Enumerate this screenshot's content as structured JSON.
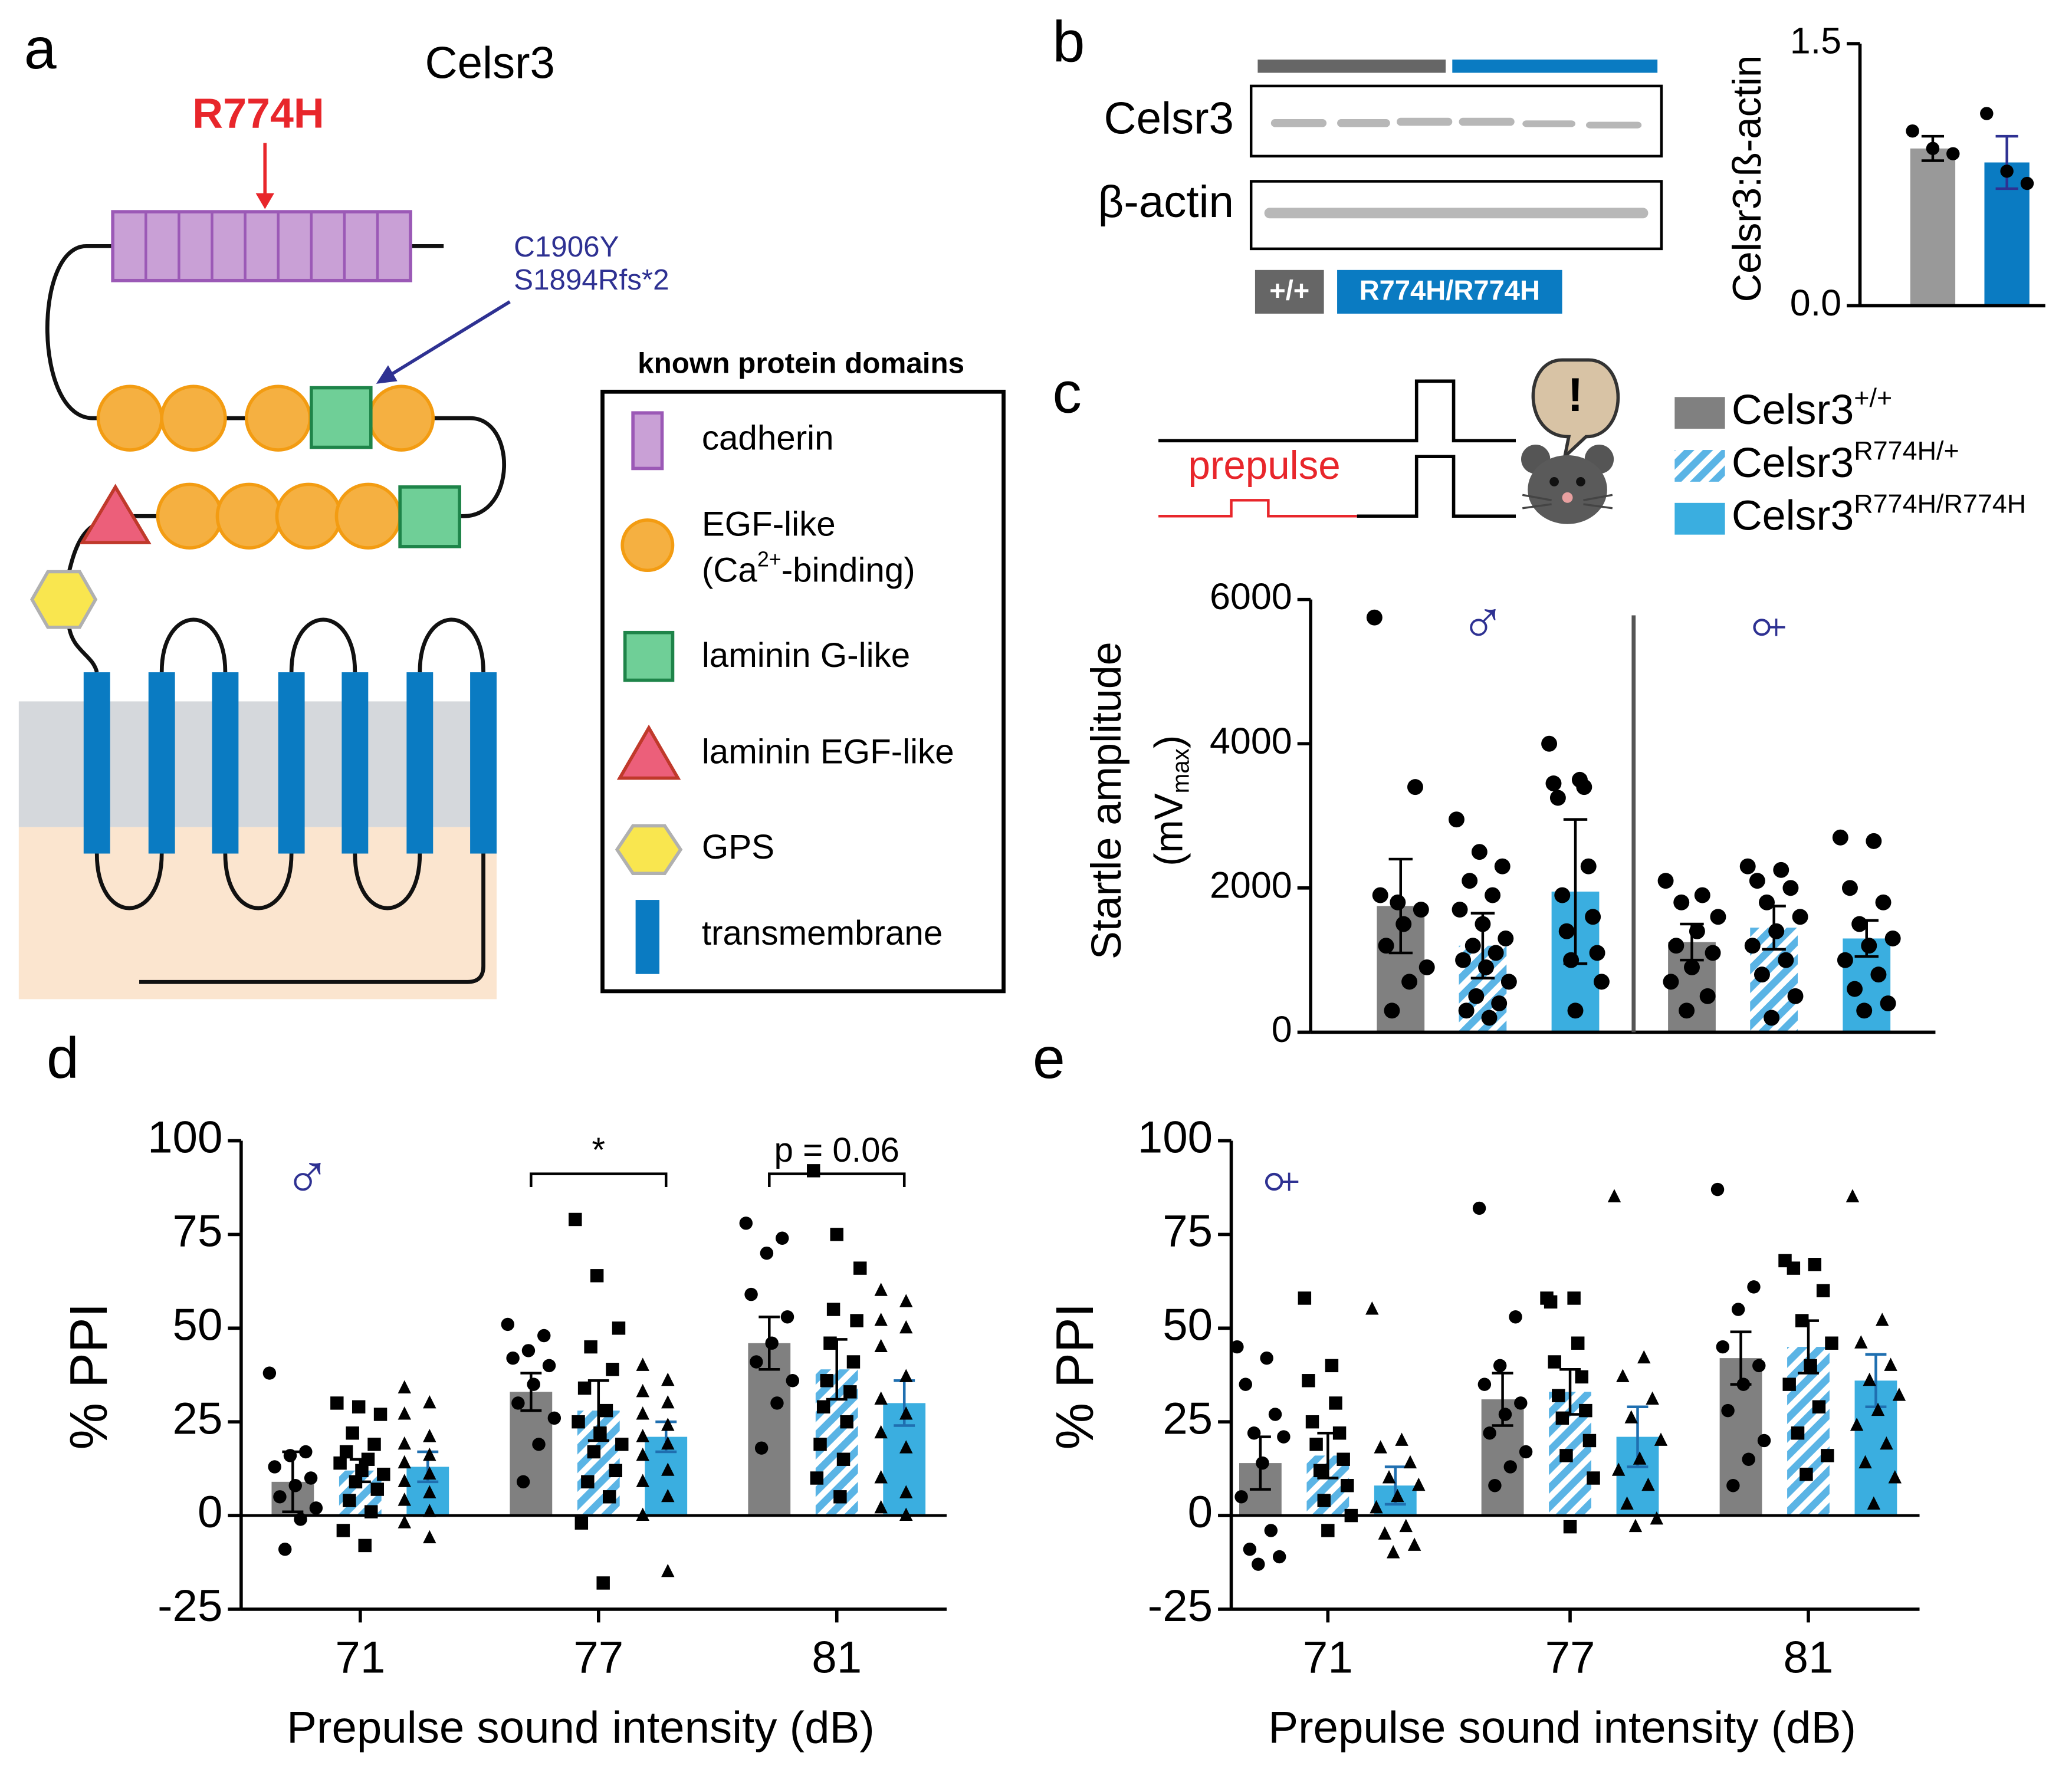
{
  "panel_labels": [
    "a",
    "b",
    "c",
    "d",
    "e"
  ],
  "diagram": {
    "title": "Celsr3",
    "mutation": "R774H",
    "variants": [
      "C1906Y",
      "S1894Rfs*2"
    ],
    "legend_title": "known protein domains",
    "domains": [
      "cadherin",
      "EGF-like",
      "laminin G-like",
      "laminin EGF-like",
      "GPS",
      "transmembrane"
    ],
    "egf_note": [
      "(Ca",
      "2+",
      "-binding)"
    ]
  },
  "blot": {
    "rows": [
      "Celsr3",
      "β-actin"
    ],
    "groups": [
      "+/+",
      "R774H/R774H"
    ]
  },
  "stimulus": {
    "label": "prepulse",
    "alert": "!"
  },
  "chart_data": [
    {
      "type": "bar",
      "ylabel": "Celsr3:ß-actin",
      "ylim": [
        0,
        1.5
      ],
      "yticks": [
        {
          "value": 0,
          "label": "0.0"
        },
        {
          "value": 1.5,
          "label": "1.5"
        }
      ],
      "series": [
        {
          "color": "#999999",
          "error_color": "#000000",
          "marker": "circle",
          "values": [
            0.9
          ],
          "errors": [
            0.07
          ],
          "points": [
            [
              1.0,
              0.9,
              0.87
            ]
          ]
        },
        {
          "color": "#0a7bc2",
          "error_color": "#2e3192",
          "marker": "circle",
          "values": [
            0.82
          ],
          "errors": [
            0.15
          ],
          "points": [
            [
              1.1,
              0.77,
              0.7
            ]
          ]
        }
      ]
    },
    {
      "type": "bar",
      "ylabel": "Startle amplitude",
      "ylabel_unit": [
        "(mV",
        "max",
        ")"
      ],
      "groups": [
        "♂",
        "♀"
      ],
      "ylim": [
        0,
        6000
      ],
      "yticks": [
        0,
        2000,
        4000,
        6000
      ],
      "series": [
        {
          "name": "Celsr3",
          "genotype": "+/+",
          "color": "#808080",
          "error_color": "#000000",
          "marker": "circle",
          "values": [
            1750,
            1250
          ],
          "errors": [
            650,
            250
          ],
          "points": [
            [
              5750,
              3400,
              1800,
              1900,
              1700,
              1500,
              1200,
              900,
              700,
              300
            ],
            [
              2100,
              1900,
              1800,
              1600,
              1400,
              1200,
              1100,
              900,
              700,
              500,
              300
            ]
          ]
        },
        {
          "name": "Celsr3",
          "genotype": "R774H/+",
          "color": "#5ab4e5",
          "pattern": "hatch",
          "error_color": "#000000",
          "marker": "circle",
          "values": [
            1200,
            1450
          ],
          "errors": [
            450,
            300
          ],
          "points": [
            [
              2950,
              2500,
              2300,
              2100,
              1900,
              1700,
              1500,
              1300,
              1200,
              1100,
              1000,
              900,
              700,
              500,
              400,
              300,
              200
            ],
            [
              2300,
              2250,
              2100,
              2000,
              1800,
              1600,
              1400,
              1200,
              1000,
              800,
              500,
              200
            ]
          ]
        },
        {
          "name": "Celsr3",
          "genotype": "R774H/R774H",
          "color": "#3aaee0",
          "error_color": "#000000",
          "marker": "circle",
          "values": [
            1950,
            1300
          ],
          "errors": [
            1000,
            250
          ],
          "points": [
            [
              4000,
              3500,
              3450,
              3400,
              3250,
              2300,
              1900,
              1600,
              1400,
              1100,
              1000,
              700,
              300
            ],
            [
              2700,
              2650,
              2000,
              1800,
              1500,
              1300,
              1200,
              1000,
              800,
              600,
              400,
              300
            ]
          ]
        }
      ]
    },
    {
      "type": "bar",
      "symbol": "♂",
      "categories": [
        "71",
        "77",
        "81"
      ],
      "xlabel": "Prepulse sound intensity (dB)",
      "ylabel": "% PPI",
      "ylim": [
        -25,
        100
      ],
      "yticks": [
        -25,
        0,
        25,
        50,
        75,
        100
      ],
      "annotations": [
        "*",
        "p = 0.06"
      ],
      "series": [
        {
          "color": "#808080",
          "error_color": "#000000",
          "marker": "circle",
          "values": [
            9,
            33,
            46
          ],
          "errors": [
            8,
            5,
            7
          ],
          "points": [
            [
              38,
              17,
              16,
              13,
              10,
              8,
              5,
              2,
              -1,
              -9
            ],
            [
              51,
              48,
              44,
              42,
              40,
              35,
              30,
              26,
              19,
              9
            ],
            [
              78,
              74,
              70,
              59,
              53,
              46,
              41,
              36,
              30,
              18
            ]
          ]
        },
        {
          "color": "#5ab4e5",
          "pattern": "hatch",
          "error_color": "#000000",
          "marker": "square",
          "values": [
            12,
            28,
            39
          ],
          "errors": [
            3,
            8,
            8
          ],
          "points": [
            [
              30,
              29,
              27,
              22,
              19,
              17,
              15,
              14,
              12,
              11,
              9,
              7,
              4,
              1,
              -4,
              -8
            ],
            [
              79,
              64,
              50,
              45,
              39,
              34,
              28,
              25,
              22,
              19,
              17,
              12,
              9,
              5,
              -2,
              -18
            ],
            [
              92,
              75,
              66,
              55,
              52,
              46,
              41,
              36,
              33,
              29,
              25,
              19,
              15,
              10,
              5
            ]
          ]
        },
        {
          "color": "#3aaee0",
          "error_color": "#1f6fb0",
          "marker": "triangle",
          "values": [
            13,
            21,
            30
          ],
          "errors": [
            4,
            4,
            6
          ],
          "points": [
            [
              34,
              30,
              27,
              21,
              19,
              16,
              14,
              11,
              9,
              6,
              4,
              1,
              -2,
              -6
            ],
            [
              40,
              36,
              33,
              30,
              27,
              24,
              21,
              19,
              16,
              12,
              9,
              5,
              0,
              -15
            ],
            [
              60,
              57,
              52,
              50,
              45,
              37,
              31,
              27,
              22,
              18,
              10,
              6,
              2,
              0
            ]
          ]
        }
      ]
    },
    {
      "type": "bar",
      "symbol": "♀",
      "categories": [
        "71",
        "77",
        "81"
      ],
      "xlabel": "Prepulse sound intensity (dB)",
      "ylabel": "% PPI",
      "ylim": [
        -25,
        100
      ],
      "yticks": [
        -25,
        0,
        25,
        50,
        75,
        100
      ],
      "series": [
        {
          "color": "#808080",
          "error_color": "#000000",
          "marker": "circle",
          "values": [
            14,
            31,
            42
          ],
          "errors": [
            7,
            7,
            7
          ],
          "points": [
            [
              45,
              42,
              35,
              27,
              22,
              21,
              14,
              5,
              -4,
              -9,
              -11,
              -13
            ],
            [
              82,
              53,
              40,
              35,
              30,
              27,
              22,
              17,
              13,
              8
            ],
            [
              87,
              61,
              55,
              45,
              40,
              35,
              28,
              20,
              15,
              8
            ]
          ]
        },
        {
          "color": "#5ab4e5",
          "pattern": "hatch",
          "error_color": "#000000",
          "marker": "square",
          "values": [
            16,
            33,
            45
          ],
          "errors": [
            6,
            6,
            7
          ],
          "points": [
            [
              58,
              40,
              36,
              30,
              25,
              22,
              19,
              15,
              12,
              8,
              4,
              0,
              -4
            ],
            [
              58,
              58,
              57,
              46,
              41,
              37,
              32,
              28,
              26,
              20,
              16,
              10,
              -3
            ],
            [
              68,
              67,
              66,
              60,
              52,
              46,
              40,
              35,
              29,
              22,
              16,
              11
            ]
          ]
        },
        {
          "color": "#3aaee0",
          "error_color": "#1f6fb0",
          "marker": "triangle",
          "values": [
            8,
            21,
            36
          ],
          "errors": [
            5,
            8,
            7
          ],
          "points": [
            [
              55,
              20,
              18,
              14,
              10,
              8,
              5,
              2,
              -3,
              -5,
              -8,
              -10
            ],
            [
              85,
              42,
              37,
              31,
              26,
              20,
              15,
              12,
              8,
              3,
              -1,
              -3
            ],
            [
              85,
              52,
              46,
              40,
              36,
              32,
              28,
              24,
              19,
              14,
              10,
              3
            ]
          ]
        }
      ]
    }
  ]
}
